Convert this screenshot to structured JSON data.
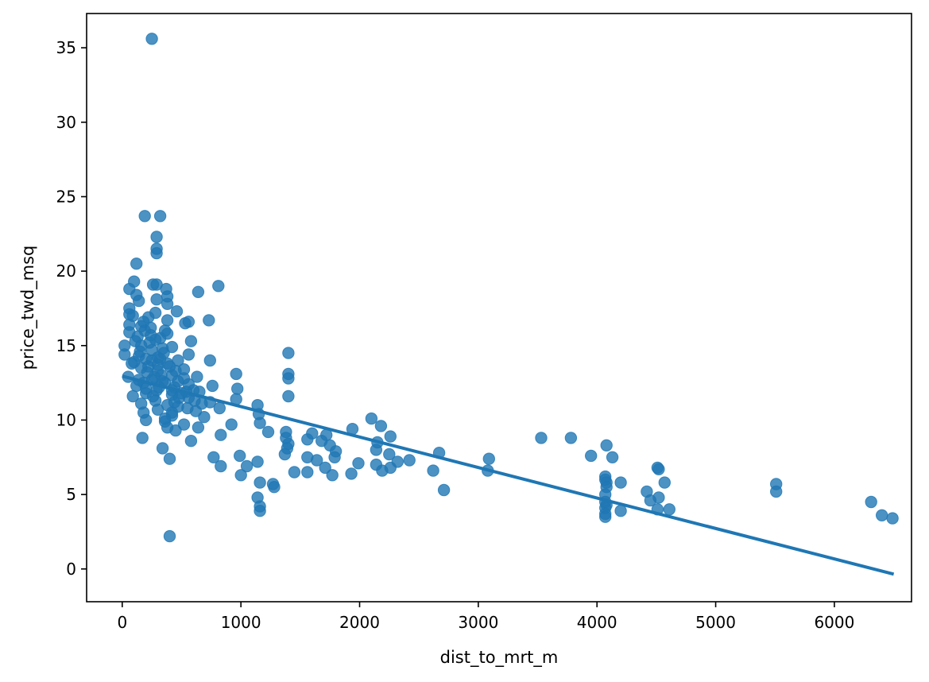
{
  "chart_data": {
    "type": "scatter",
    "title": "",
    "xlabel": "dist_to_mrt_m",
    "ylabel": "price_twd_msq",
    "xlim": [
      -300,
      6650
    ],
    "ylim": [
      -2.2,
      37.3
    ],
    "xticks": [
      0,
      1000,
      2000,
      3000,
      4000,
      5000,
      6000
    ],
    "yticks": [
      0,
      5,
      10,
      15,
      20,
      25,
      30,
      35
    ],
    "grid": false,
    "legend": "none",
    "color": "#1f77b4",
    "points": [
      [
        250,
        35.6
      ],
      [
        190,
        23.7
      ],
      [
        320,
        23.7
      ],
      [
        290,
        22.3
      ],
      [
        290,
        21.5
      ],
      [
        290,
        21.2
      ],
      [
        120,
        20.5
      ],
      [
        100,
        19.3
      ],
      [
        260,
        19.1
      ],
      [
        290,
        19.1
      ],
      [
        810,
        19.0
      ],
      [
        60,
        18.8
      ],
      [
        370,
        18.8
      ],
      [
        640,
        18.6
      ],
      [
        120,
        18.4
      ],
      [
        380,
        18.3
      ],
      [
        290,
        18.1
      ],
      [
        140,
        18.0
      ],
      [
        380,
        17.8
      ],
      [
        60,
        17.5
      ],
      [
        460,
        17.3
      ],
      [
        280,
        17.2
      ],
      [
        60,
        17.1
      ],
      [
        220,
        16.9
      ],
      [
        730,
        16.7
      ],
      [
        380,
        16.7
      ],
      [
        560,
        16.6
      ],
      [
        530,
        16.5
      ],
      [
        60,
        16.4
      ],
      [
        160,
        16.3
      ],
      [
        240,
        16.2
      ],
      [
        360,
        16.0
      ],
      [
        190,
        16.0
      ],
      [
        60,
        15.9
      ],
      [
        380,
        15.8
      ],
      [
        130,
        15.6
      ],
      [
        320,
        15.5
      ],
      [
        280,
        15.4
      ],
      [
        580,
        15.3
      ],
      [
        230,
        15.2
      ],
      [
        20,
        15.0
      ],
      [
        160,
        15.0
      ],
      [
        420,
        14.9
      ],
      [
        340,
        14.8
      ],
      [
        250,
        14.7
      ],
      [
        1400,
        14.5
      ],
      [
        20,
        14.4
      ],
      [
        560,
        14.4
      ],
      [
        140,
        14.3
      ],
      [
        300,
        14.2
      ],
      [
        200,
        14.1
      ],
      [
        740,
        14.0
      ],
      [
        470,
        14.0
      ],
      [
        100,
        13.9
      ],
      [
        380,
        13.8
      ],
      [
        220,
        13.6
      ],
      [
        160,
        13.5
      ],
      [
        520,
        13.4
      ],
      [
        300,
        13.3
      ],
      [
        960,
        13.1
      ],
      [
        1400,
        13.1
      ],
      [
        420,
        13.0
      ],
      [
        50,
        12.9
      ],
      [
        630,
        12.9
      ],
      [
        1400,
        12.8
      ],
      [
        250,
        12.7
      ],
      [
        340,
        12.6
      ],
      [
        180,
        12.5
      ],
      [
        560,
        12.4
      ],
      [
        120,
        12.3
      ],
      [
        760,
        12.3
      ],
      [
        440,
        12.2
      ],
      [
        970,
        12.1
      ],
      [
        290,
        12.0
      ],
      [
        650,
        11.9
      ],
      [
        200,
        11.8
      ],
      [
        420,
        11.7
      ],
      [
        1400,
        11.6
      ],
      [
        90,
        11.6
      ],
      [
        560,
        11.5
      ],
      [
        960,
        11.4
      ],
      [
        280,
        11.3
      ],
      [
        740,
        11.2
      ],
      [
        160,
        11.1
      ],
      [
        1140,
        11.0
      ],
      [
        470,
        10.9
      ],
      [
        820,
        10.8
      ],
      [
        300,
        10.7
      ],
      [
        620,
        10.6
      ],
      [
        180,
        10.5
      ],
      [
        1150,
        10.4
      ],
      [
        420,
        10.3
      ],
      [
        690,
        10.2
      ],
      [
        2100,
        10.1
      ],
      [
        200,
        10.0
      ],
      [
        360,
        9.9
      ],
      [
        1160,
        9.8
      ],
      [
        520,
        9.7
      ],
      [
        920,
        9.7
      ],
      [
        2180,
        9.6
      ],
      [
        380,
        9.5
      ],
      [
        640,
        9.5
      ],
      [
        1940,
        9.4
      ],
      [
        450,
        9.3
      ],
      [
        1230,
        9.2
      ],
      [
        1380,
        9.2
      ],
      [
        1600,
        9.1
      ],
      [
        1720,
        9.0
      ],
      [
        830,
        9.0
      ],
      [
        2260,
        8.9
      ],
      [
        3530,
        8.8
      ],
      [
        3780,
        8.8
      ],
      [
        170,
        8.8
      ],
      [
        1380,
        8.8
      ],
      [
        1560,
        8.7
      ],
      [
        580,
        8.6
      ],
      [
        1680,
        8.6
      ],
      [
        2150,
        8.5
      ],
      [
        1400,
        8.4
      ],
      [
        4080,
        8.3
      ],
      [
        1750,
        8.3
      ],
      [
        340,
        8.1
      ],
      [
        1390,
        8.1
      ],
      [
        2140,
        8.0
      ],
      [
        1800,
        7.9
      ],
      [
        2670,
        7.8
      ],
      [
        1370,
        7.7
      ],
      [
        2250,
        7.7
      ],
      [
        990,
        7.6
      ],
      [
        770,
        7.5
      ],
      [
        1560,
        7.5
      ],
      [
        3950,
        7.6
      ],
      [
        4130,
        7.5
      ],
      [
        1790,
        7.5
      ],
      [
        3090,
        7.4
      ],
      [
        400,
        7.4
      ],
      [
        1640,
        7.3
      ],
      [
        2420,
        7.3
      ],
      [
        1140,
        7.2
      ],
      [
        2320,
        7.2
      ],
      [
        1990,
        7.1
      ],
      [
        2140,
        7.0
      ],
      [
        1050,
        6.9
      ],
      [
        830,
        6.9
      ],
      [
        1710,
        6.8
      ],
      [
        2260,
        6.8
      ],
      [
        4510,
        6.8
      ],
      [
        4520,
        6.7
      ],
      [
        3080,
        6.6
      ],
      [
        2190,
        6.6
      ],
      [
        2620,
        6.6
      ],
      [
        1450,
        6.5
      ],
      [
        1560,
        6.5
      ],
      [
        1930,
        6.4
      ],
      [
        1000,
        6.3
      ],
      [
        1770,
        6.3
      ],
      [
        4070,
        6.2
      ],
      [
        4070,
        6.0
      ],
      [
        4080,
        5.8
      ],
      [
        1160,
        5.8
      ],
      [
        4200,
        5.8
      ],
      [
        4570,
        5.8
      ],
      [
        1270,
        5.7
      ],
      [
        5510,
        5.7
      ],
      [
        4080,
        5.5
      ],
      [
        1280,
        5.5
      ],
      [
        2710,
        5.3
      ],
      [
        4420,
        5.2
      ],
      [
        5510,
        5.2
      ],
      [
        4070,
        5.0
      ],
      [
        1140,
        4.8
      ],
      [
        4520,
        4.8
      ],
      [
        4450,
        4.6
      ],
      [
        4070,
        4.5
      ],
      [
        6310,
        4.5
      ],
      [
        4080,
        4.3
      ],
      [
        1160,
        4.2
      ],
      [
        4070,
        4.1
      ],
      [
        4610,
        4.0
      ],
      [
        4510,
        4.0
      ],
      [
        1160,
        3.9
      ],
      [
        4200,
        3.9
      ],
      [
        4070,
        3.7
      ],
      [
        6400,
        3.6
      ],
      [
        4070,
        3.5
      ],
      [
        6490,
        3.4
      ],
      [
        400,
        2.2
      ],
      [
        330,
        13.0
      ],
      [
        360,
        12.5
      ],
      [
        420,
        12.0
      ],
      [
        480,
        11.5
      ],
      [
        520,
        12.8
      ],
      [
        250,
        14.0
      ],
      [
        300,
        13.7
      ],
      [
        350,
        14.5
      ],
      [
        450,
        13.3
      ],
      [
        500,
        11.8
      ],
      [
        550,
        10.8
      ],
      [
        600,
        12.0
      ],
      [
        420,
        10.5
      ],
      [
        380,
        11.0
      ],
      [
        310,
        12.2
      ],
      [
        270,
        12.9
      ],
      [
        210,
        13.2
      ],
      [
        150,
        14.6
      ],
      [
        110,
        15.3
      ],
      [
        90,
        17.0
      ],
      [
        180,
        16.6
      ],
      [
        240,
        15.7
      ],
      [
        320,
        14.1
      ],
      [
        400,
        13.6
      ],
      [
        470,
        12.6
      ],
      [
        540,
        11.9
      ],
      [
        610,
        11.3
      ],
      [
        670,
        11.1
      ],
      [
        440,
        11.2
      ],
      [
        360,
        10.1
      ],
      [
        260,
        11.6
      ],
      [
        200,
        12.1
      ],
      [
        140,
        12.7
      ],
      [
        80,
        13.8
      ]
    ],
    "regression": {
      "x": [
        0,
        6500
      ],
      "y": [
        12.95,
        -0.35
      ]
    }
  }
}
